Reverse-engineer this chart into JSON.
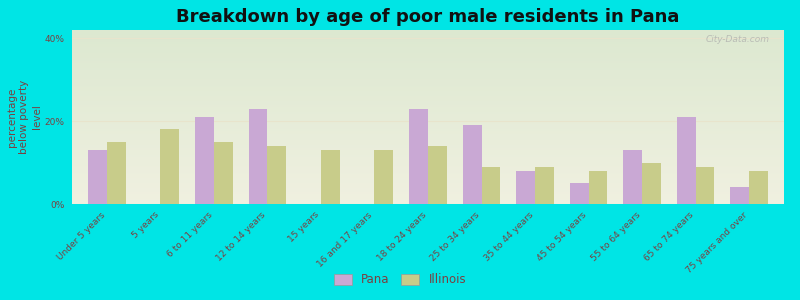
{
  "title": "Breakdown by age of poor male residents in Pana",
  "ylabel": "percentage\nbelow poverty\nlevel",
  "categories": [
    "Under 5 years",
    "5 years",
    "6 to 11 years",
    "12 to 14 years",
    "15 years",
    "16 and 17 years",
    "18 to 24 years",
    "25 to 34 years",
    "35 to 44 years",
    "45 to 54 years",
    "55 to 64 years",
    "65 to 74 years",
    "75 years and over"
  ],
  "pana_values": [
    13,
    0,
    21,
    23,
    0,
    0,
    23,
    19,
    8,
    5,
    13,
    21,
    4
  ],
  "illinois_values": [
    15,
    18,
    15,
    14,
    13,
    13,
    14,
    9,
    9,
    8,
    10,
    9,
    8
  ],
  "pana_color": "#c9a8d4",
  "illinois_color": "#c8cc8a",
  "outer_bg": "#00e5e5",
  "plot_bg_top": "#dce8d0",
  "plot_bg_bottom": "#f0f0e0",
  "grid_color": "#e0ddc8",
  "ylim": [
    0,
    42
  ],
  "yticks": [
    0,
    20,
    40
  ],
  "ytick_labels": [
    "0%",
    "20%",
    "40%"
  ],
  "bar_width": 0.35,
  "title_fontsize": 13,
  "axis_label_fontsize": 7.5,
  "tick_fontsize": 6.5,
  "legend_fontsize": 8.5,
  "label_color": "#7a4040",
  "watermark": "City-Data.com"
}
